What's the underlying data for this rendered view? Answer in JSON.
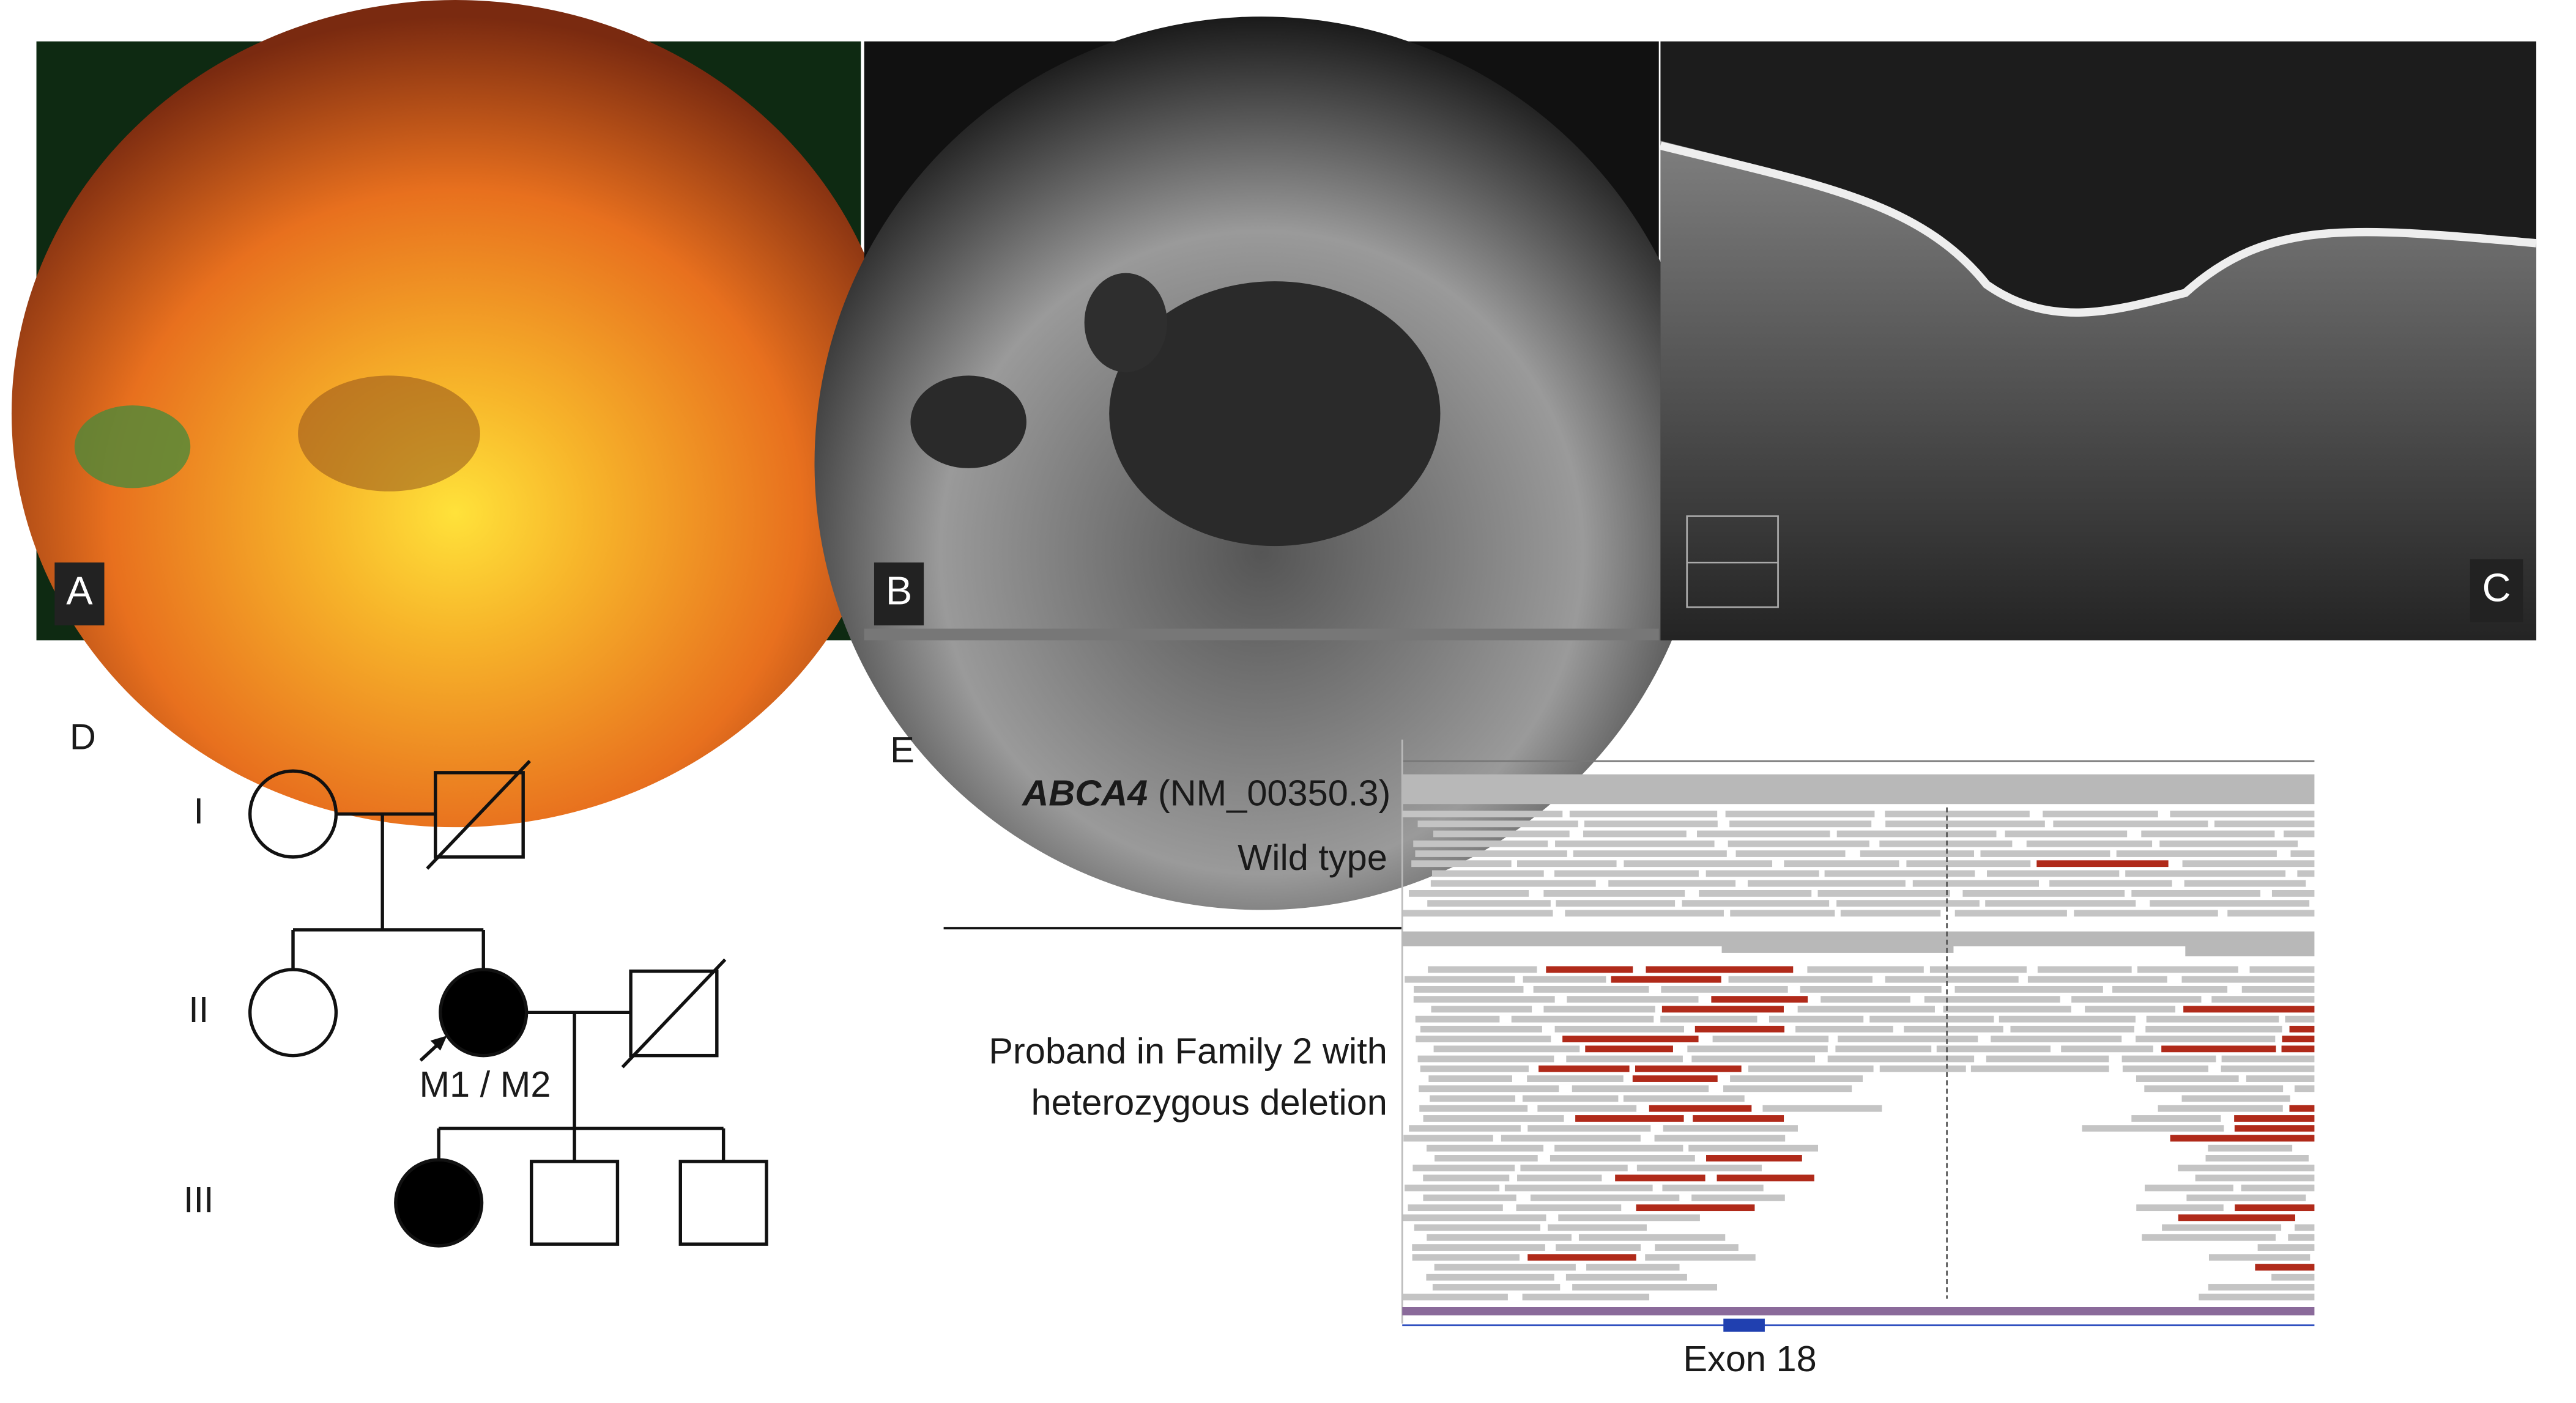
{
  "panel_labels": [
    "A",
    "B",
    "C",
    "D",
    "E"
  ],
  "pedigree": {
    "generations": [
      "I",
      "II",
      "III"
    ],
    "proband_label": "M1 / M2"
  },
  "igv": {
    "gene": "ABCA4",
    "transcript": "(NM_00350.3)",
    "wild_type": "Wild type",
    "proband_lines": [
      "Proband in Family 2 with",
      "heterozygous deletion"
    ],
    "exon_label": "Exon 18"
  }
}
